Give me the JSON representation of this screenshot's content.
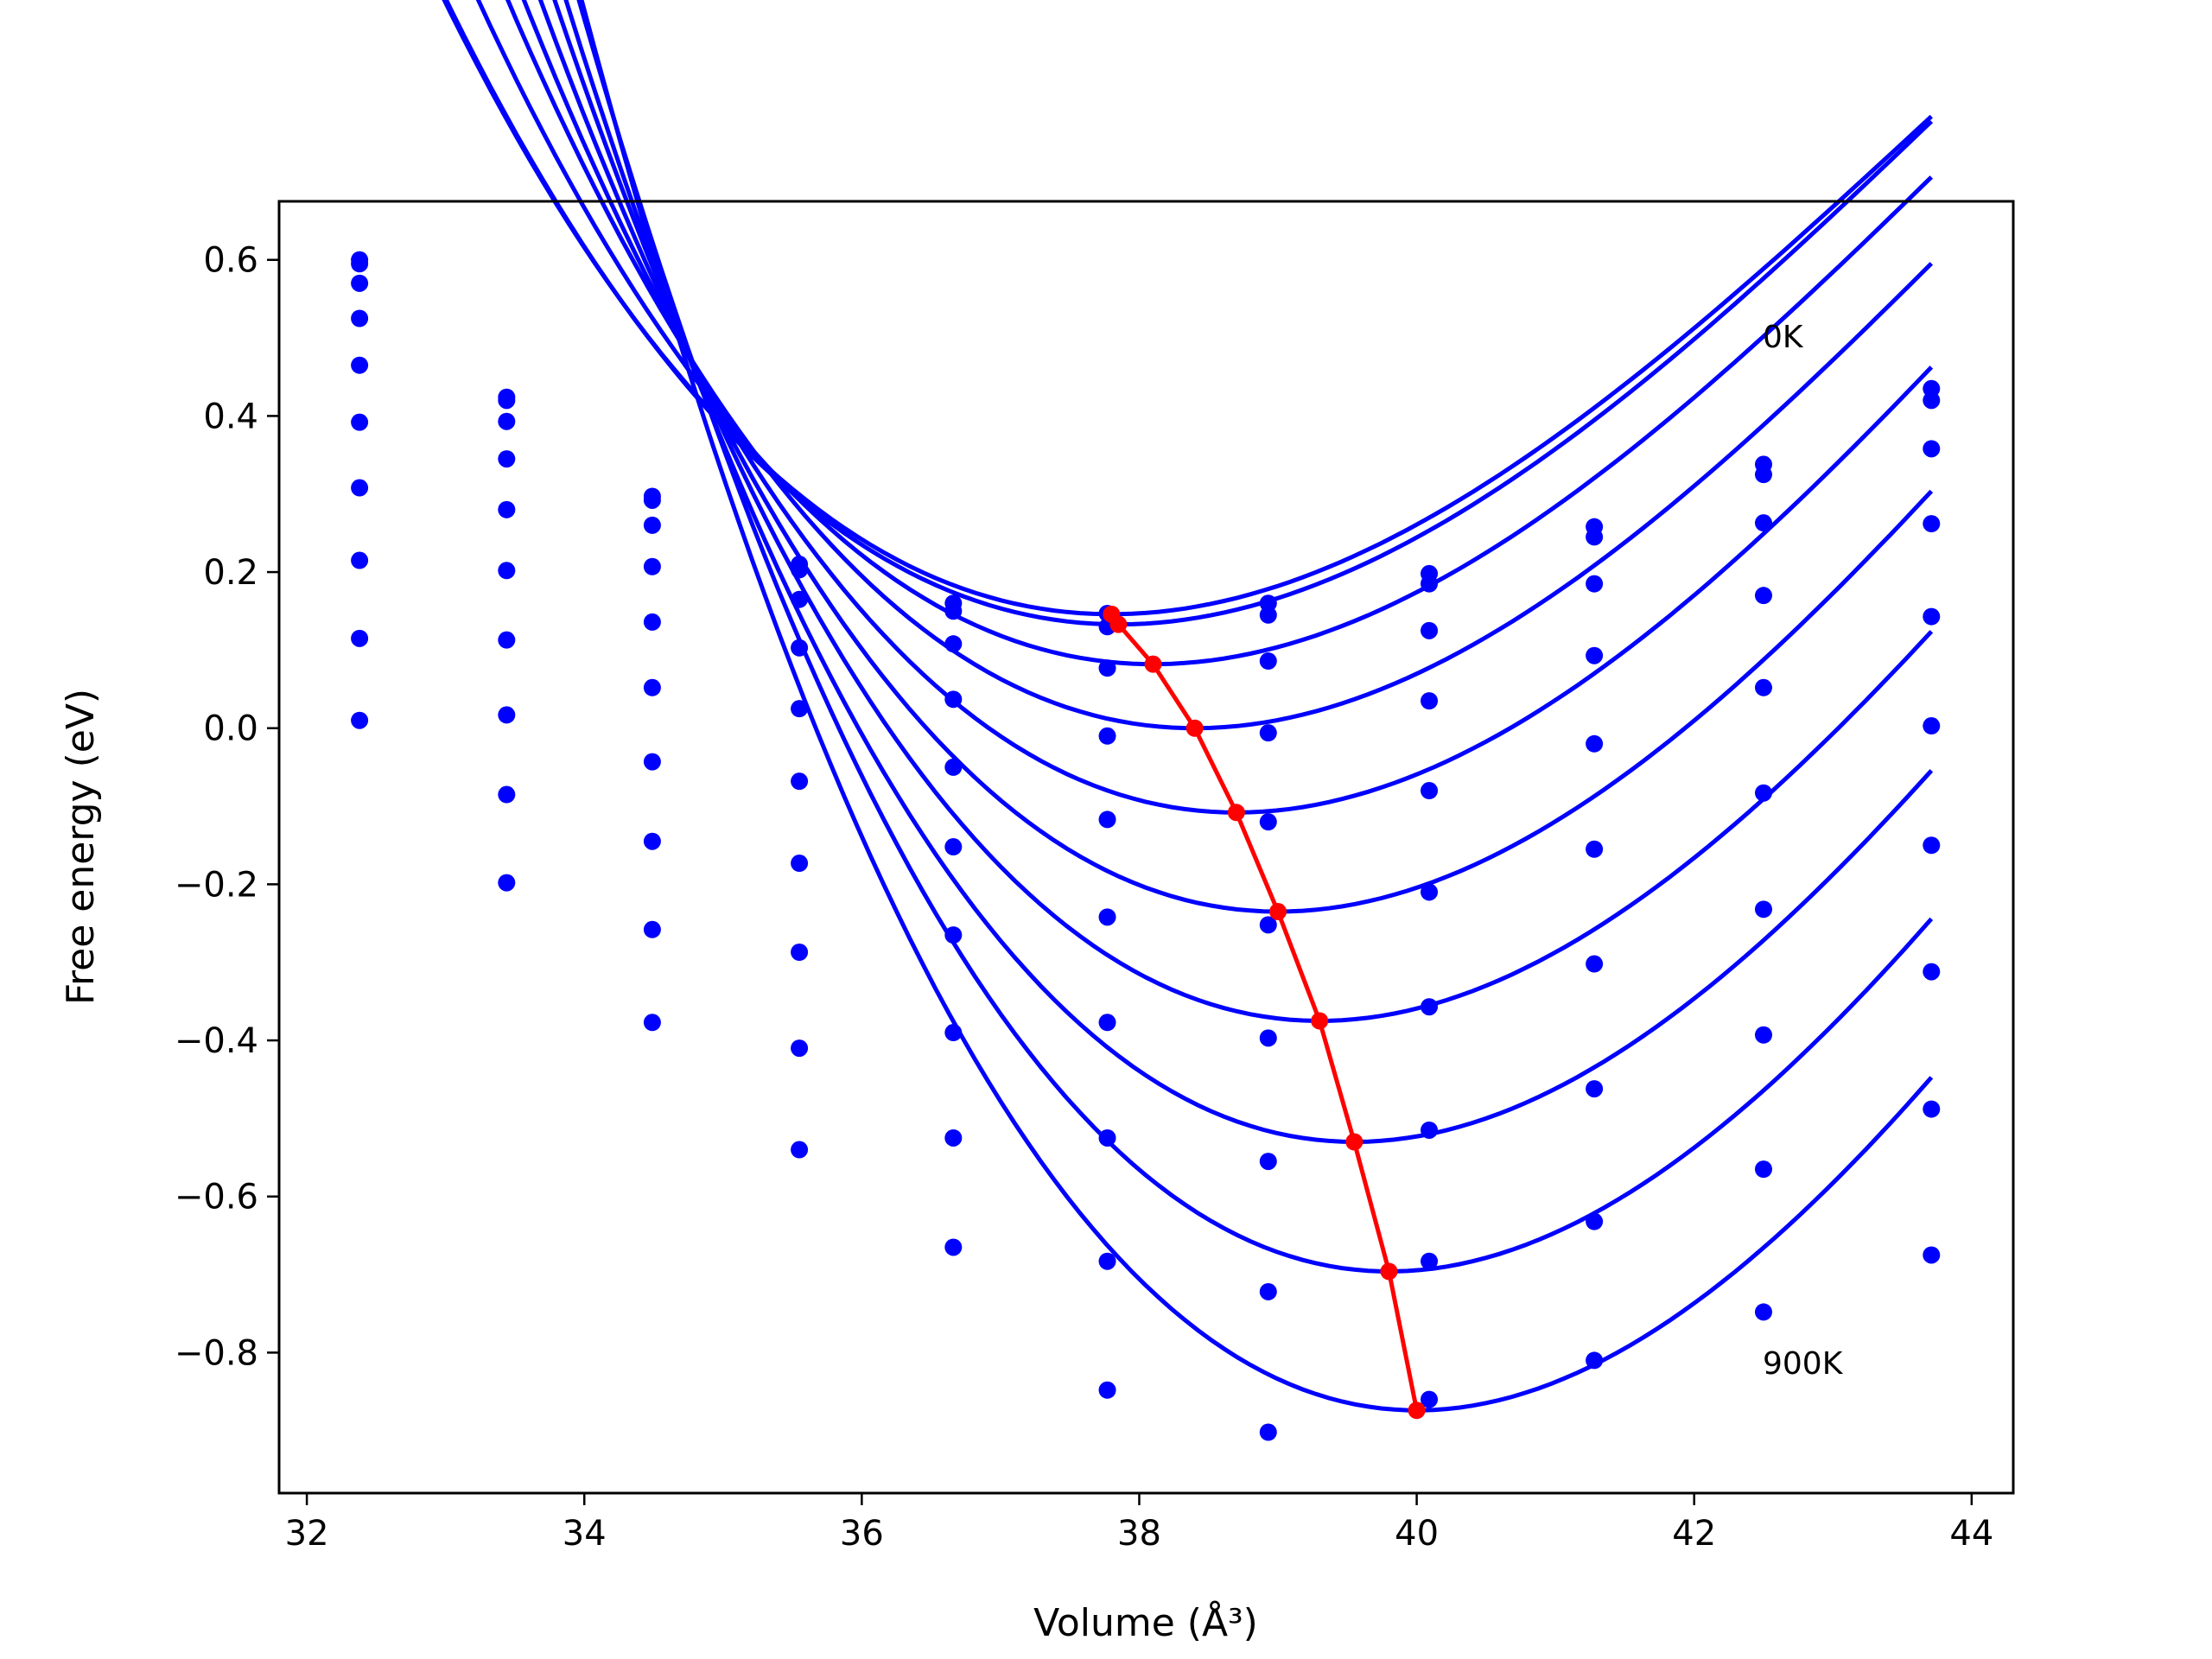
{
  "chart_data": {
    "type": "line",
    "xlabel": "Volume (Å³)",
    "ylabel": "Free energy (eV)",
    "xlim": [
      31.8,
      44.3
    ],
    "ylim": [
      -0.98,
      0.675
    ],
    "xticks": [
      32,
      34,
      36,
      38,
      40,
      42,
      44
    ],
    "yticks": [
      -0.8,
      -0.6,
      -0.4,
      -0.2,
      0.0,
      0.2,
      0.4,
      0.6
    ],
    "ytick_labels": [
      "−0.8",
      "−0.6",
      "−0.4",
      "−0.2",
      "0.0",
      "0.2",
      "0.4",
      "0.6"
    ],
    "xtick_labels": [
      "32",
      "34",
      "36",
      "38",
      "40",
      "42",
      "44"
    ],
    "grid": false,
    "series_color": "#0000ff",
    "min_line_color": "#ff0000",
    "annotations": [
      "0K",
      "900K"
    ],
    "x": [
      32.38,
      33.44,
      34.49,
      35.55,
      36.66,
      37.77,
      38.93,
      40.09,
      41.28,
      42.5,
      43.71
    ],
    "series": [
      {
        "values": [
          0.6,
          0.424,
          0.297,
          0.21,
          0.16,
          0.147,
          0.16,
          0.198,
          0.258,
          0.338,
          0.435
        ],
        "fit": {
          "vmin": 37.8,
          "fmin": 0.146,
          "a": 0.02695,
          "b": -0.00147
        }
      },
      {
        "values": [
          0.595,
          0.42,
          0.292,
          0.203,
          0.15,
          0.13,
          0.145,
          0.185,
          0.245,
          0.325,
          0.42
        ],
        "fit": {
          "vmin": 37.85,
          "fmin": 0.133,
          "a": 0.02715,
          "b": -0.00143
        }
      },
      {
        "values": [
          0.57,
          0.393,
          0.26,
          0.165,
          0.108,
          0.077,
          0.086,
          0.125,
          0.185,
          0.263,
          0.358
        ],
        "fit": {
          "vmin": 38.1,
          "fmin": 0.082,
          "a": 0.02847,
          "b": -0.00154
        }
      },
      {
        "values": [
          0.525,
          0.345,
          0.207,
          0.103,
          0.037,
          -0.01,
          -0.006,
          0.035,
          0.093,
          0.17,
          0.262
        ],
        "fit": {
          "vmin": 38.4,
          "fmin": 0.0,
          "a": 0.02988,
          "b": -0.00165
        }
      },
      {
        "values": [
          0.465,
          0.28,
          0.136,
          0.025,
          -0.05,
          -0.117,
          -0.12,
          -0.08,
          -0.02,
          0.052,
          0.143
        ],
        "fit": {
          "vmin": 38.7,
          "fmin": -0.108,
          "a": 0.031,
          "b": -0.00165
        }
      },
      {
        "values": [
          0.392,
          0.202,
          0.052,
          -0.068,
          -0.152,
          -0.242,
          -0.252,
          -0.21,
          -0.155,
          -0.083,
          0.003
        ],
        "fit": {
          "vmin": 39.0,
          "fmin": -0.235,
          "a": 0.03229,
          "b": -0.0017
        }
      },
      {
        "values": [
          0.308,
          0.113,
          -0.043,
          -0.173,
          -0.265,
          -0.377,
          -0.397,
          -0.357,
          -0.302,
          -0.232,
          -0.15
        ],
        "fit": {
          "vmin": 39.3,
          "fmin": -0.375,
          "a": 0.03337,
          "b": -0.00175
        }
      },
      {
        "values": [
          0.215,
          0.017,
          -0.145,
          -0.287,
          -0.39,
          -0.525,
          -0.555,
          -0.515,
          -0.462,
          -0.393,
          -0.312
        ],
        "fit": {
          "vmin": 39.55,
          "fmin": -0.53,
          "a": 0.03502,
          "b": -0.00181
        }
      },
      {
        "values": [
          0.115,
          -0.085,
          -0.258,
          -0.41,
          -0.525,
          -0.683,
          -0.722,
          -0.683,
          -0.632,
          -0.565,
          -0.488
        ],
        "fit": {
          "vmin": 39.8,
          "fmin": -0.696,
          "a": 0.03686,
          "b": -0.00187
        }
      },
      {
        "values": [
          0.01,
          -0.198,
          -0.377,
          -0.54,
          -0.665,
          -0.848,
          -0.902,
          -0.86,
          -0.81,
          -0.748,
          -0.675
        ],
        "fit": {
          "vmin": 40.0,
          "fmin": -0.874,
          "a": 0.03819,
          "b": -0.00194
        }
      }
    ],
    "minima": {
      "x": [
        37.8,
        37.85,
        38.1,
        38.4,
        38.7,
        39.0,
        39.3,
        39.55,
        39.8,
        40.0
      ],
      "y": [
        0.146,
        0.133,
        0.082,
        0.0,
        -0.108,
        -0.235,
        -0.375,
        -0.53,
        -0.696,
        -0.874
      ]
    }
  }
}
